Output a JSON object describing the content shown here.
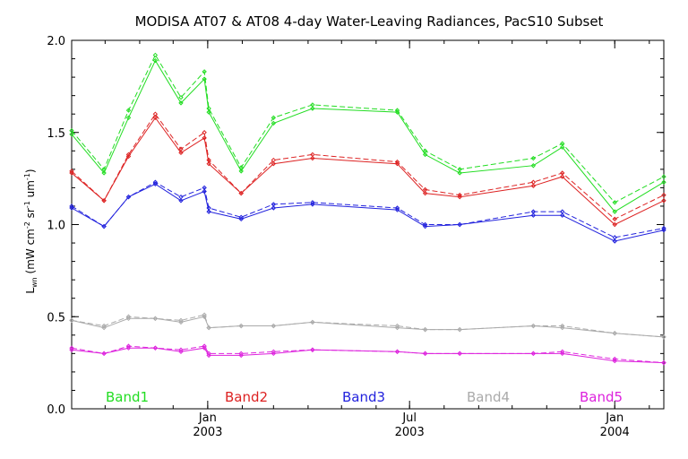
{
  "chart_data": {
    "type": "line",
    "title": "MODISA AT07 & AT08 4-day Water-Leaving Radiances, PacS10 Subset",
    "ylabel_main": "L",
    "ylabel_sub": "wn",
    "ylabel_mid": " (mW cm",
    "ylabel_sup1": "-2",
    "ylabel_mid2": " sr",
    "ylabel_sup2": "-1",
    "ylabel_mid3": " um",
    "ylabel_sup3": "-1",
    "ylabel_end": ")",
    "xlim": [
      "2002-09-01",
      "2004-02-14"
    ],
    "ylim": [
      0.0,
      2.0
    ],
    "y_ticks": [
      "0.0",
      "0.5",
      "1.0",
      "1.5",
      "2.0"
    ],
    "x_ticks": [
      {
        "date": "2003-01-01",
        "month": "Jan",
        "year": "2003"
      },
      {
        "date": "2003-07-01",
        "month": "Jul",
        "year": "2003"
      },
      {
        "date": "2004-01-01",
        "month": "Jan",
        "year": "2004"
      }
    ],
    "series": [
      {
        "name": "Band1",
        "color": "#22dd22",
        "x": [
          "2002-09-01",
          "2002-09-30",
          "2002-10-22",
          "2002-11-15",
          "2002-12-08",
          "2002-12-29",
          "2003-01-02",
          "2003-01-31",
          "2003-03-01",
          "2003-04-05",
          "2003-06-20",
          "2003-07-15",
          "2003-08-15",
          "2003-10-20",
          "2003-11-15",
          "2004-01-01",
          "2004-02-14"
        ],
        "values": [
          1.49,
          1.28,
          1.58,
          1.89,
          1.66,
          1.79,
          1.61,
          1.29,
          1.55,
          1.63,
          1.61,
          1.38,
          1.28,
          1.32,
          1.42,
          1.07,
          1.23
        ],
        "values2": [
          1.51,
          1.3,
          1.62,
          1.92,
          1.69,
          1.83,
          1.63,
          1.31,
          1.58,
          1.65,
          1.62,
          1.4,
          1.3,
          1.36,
          1.44,
          1.12,
          1.26
        ]
      },
      {
        "name": "Band2",
        "color": "#dd2222",
        "x": [
          "2002-09-01",
          "2002-09-30",
          "2002-10-22",
          "2002-11-15",
          "2002-12-08",
          "2002-12-29",
          "2003-01-02",
          "2003-01-31",
          "2003-03-01",
          "2003-04-05",
          "2003-06-20",
          "2003-07-15",
          "2003-08-15",
          "2003-10-20",
          "2003-11-15",
          "2004-01-01",
          "2004-02-14"
        ],
        "values": [
          1.28,
          1.13,
          1.37,
          1.58,
          1.39,
          1.47,
          1.33,
          1.17,
          1.33,
          1.36,
          1.33,
          1.17,
          1.15,
          1.21,
          1.26,
          1.0,
          1.13
        ],
        "values2": [
          1.29,
          1.13,
          1.38,
          1.6,
          1.41,
          1.5,
          1.35,
          1.17,
          1.35,
          1.38,
          1.34,
          1.19,
          1.16,
          1.23,
          1.28,
          1.03,
          1.16
        ]
      },
      {
        "name": "Band3",
        "color": "#2222dd",
        "x": [
          "2002-09-01",
          "2002-09-30",
          "2002-10-22",
          "2002-11-15",
          "2002-12-08",
          "2002-12-29",
          "2003-01-02",
          "2003-01-31",
          "2003-03-01",
          "2003-04-05",
          "2003-06-20",
          "2003-07-15",
          "2003-08-15",
          "2003-10-20",
          "2003-11-15",
          "2004-01-01",
          "2004-02-14"
        ],
        "values": [
          1.09,
          0.99,
          1.15,
          1.22,
          1.13,
          1.18,
          1.07,
          1.03,
          1.09,
          1.11,
          1.08,
          0.99,
          1.0,
          1.05,
          1.05,
          0.91,
          0.97
        ],
        "values2": [
          1.1,
          0.99,
          1.15,
          1.23,
          1.15,
          1.2,
          1.09,
          1.04,
          1.11,
          1.12,
          1.09,
          1.0,
          1.0,
          1.07,
          1.07,
          0.93,
          0.98
        ]
      },
      {
        "name": "Band4",
        "color": "#aaaaaa",
        "x": [
          "2002-09-01",
          "2002-09-30",
          "2002-10-22",
          "2002-11-15",
          "2002-12-08",
          "2002-12-29",
          "2003-01-02",
          "2003-01-31",
          "2003-03-01",
          "2003-04-05",
          "2003-06-20",
          "2003-07-15",
          "2003-08-15",
          "2003-10-20",
          "2003-11-15",
          "2004-01-01",
          "2004-02-14"
        ],
        "values": [
          0.48,
          0.44,
          0.49,
          0.49,
          0.47,
          0.5,
          0.44,
          0.45,
          0.45,
          0.47,
          0.44,
          0.43,
          0.43,
          0.45,
          0.44,
          0.41,
          0.39
        ],
        "values2": [
          0.48,
          0.45,
          0.5,
          0.49,
          0.48,
          0.51,
          0.44,
          0.45,
          0.45,
          0.47,
          0.45,
          0.43,
          0.43,
          0.45,
          0.45,
          0.41,
          0.39
        ]
      },
      {
        "name": "Band5",
        "color": "#dd22dd",
        "x": [
          "2002-09-01",
          "2002-09-30",
          "2002-10-22",
          "2002-11-15",
          "2002-12-08",
          "2002-12-29",
          "2003-01-02",
          "2003-01-31",
          "2003-03-01",
          "2003-04-05",
          "2003-06-20",
          "2003-07-15",
          "2003-08-15",
          "2003-10-20",
          "2003-11-15",
          "2004-01-01",
          "2004-02-14"
        ],
        "values": [
          0.32,
          0.3,
          0.33,
          0.33,
          0.31,
          0.33,
          0.29,
          0.29,
          0.3,
          0.32,
          0.31,
          0.3,
          0.3,
          0.3,
          0.3,
          0.26,
          0.25
        ],
        "values2": [
          0.33,
          0.3,
          0.34,
          0.33,
          0.32,
          0.34,
          0.3,
          0.3,
          0.31,
          0.32,
          0.31,
          0.3,
          0.3,
          0.3,
          0.31,
          0.27,
          0.25
        ]
      }
    ]
  }
}
